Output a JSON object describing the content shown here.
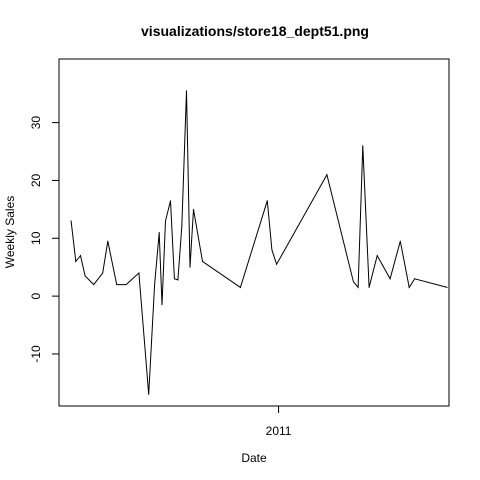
{
  "chart_data": {
    "type": "line",
    "title": "visualizations/store18_dept51.png",
    "xlabel": "Date",
    "ylabel": "Weekly Sales",
    "grid": false,
    "legend": "none",
    "line_color": "#000000",
    "xlim": [
      0,
      100
    ],
    "ylim": [
      -19,
      41
    ],
    "x_ticks": [
      {
        "value": 56.3,
        "label": "2011"
      }
    ],
    "y_ticks": [
      {
        "value": -10,
        "label": "-10"
      },
      {
        "value": 0,
        "label": "0"
      },
      {
        "value": 10,
        "label": "10"
      },
      {
        "value": 20,
        "label": "20"
      },
      {
        "value": 30,
        "label": "30"
      }
    ],
    "series": [
      {
        "x": [
          3.1,
          4.3,
          5.5,
          6.7,
          8.9,
          11.2,
          12.5,
          14.8,
          17.2,
          20.5,
          23.0,
          24.5,
          25.7,
          26.4,
          27.3,
          28.6,
          29.6,
          30.5,
          31.5,
          32.7,
          33.6,
          34.5,
          36.8,
          46.5,
          53.4,
          54.6,
          55.8,
          68.7,
          75.5,
          76.7,
          77.9,
          79.5,
          81.6,
          84.9,
          87.5,
          89.8,
          91.2,
          99.5
        ],
        "y": [
          13,
          6,
          7,
          3.5,
          2,
          4,
          9.5,
          2,
          2,
          4,
          -17,
          2,
          11,
          -1.5,
          13,
          16.5,
          3,
          2.8,
          12,
          35.5,
          5,
          15,
          6,
          1.5,
          16.5,
          8,
          5.5,
          21,
          2.5,
          1.5,
          26,
          1.5,
          7,
          3,
          9.5,
          1.5,
          3,
          1.5
        ]
      }
    ]
  }
}
